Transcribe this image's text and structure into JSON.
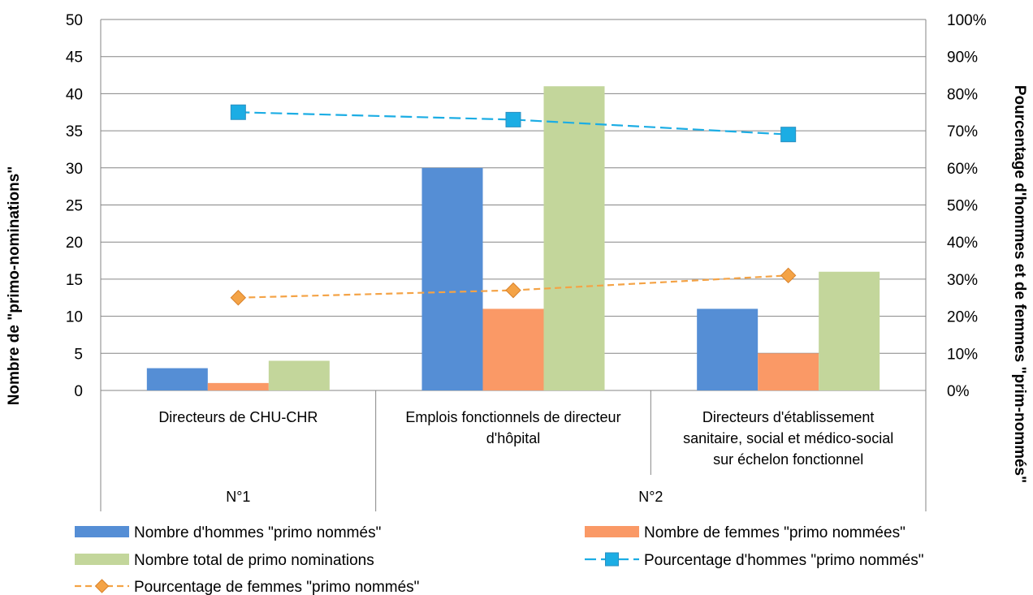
{
  "chart_data": {
    "type": "bar",
    "group_labels": [
      "N°1",
      "N°2"
    ],
    "categories": [
      "Directeurs de CHU-CHR",
      "Emplois fonctionnels de directeur d'hôpital",
      "Directeurs d'établissement sanitaire, social et médico-social sur échelon fonctionnel"
    ],
    "category_groups": [
      0,
      1,
      1
    ],
    "category_label_lines": [
      [
        "Directeurs de CHU-CHR"
      ],
      [
        "Emplois fonctionnels de directeur",
        "d'hôpital"
      ],
      [
        "Directeurs d'établissement",
        "sanitaire, social et médico-social",
        "sur échelon fonctionnel"
      ]
    ],
    "series": [
      {
        "name": "Nombre d'hommes \"primo nommés\"",
        "kind": "bar",
        "axis": "left",
        "color": "#558ed5",
        "values": [
          3,
          30,
          11
        ]
      },
      {
        "name": "Nombre de femmes \"primo nommées\"",
        "kind": "bar",
        "axis": "left",
        "color": "#fa9966",
        "values": [
          1,
          11,
          5
        ]
      },
      {
        "name": "Nombre total de primo nominations",
        "kind": "bar",
        "axis": "left",
        "color": "#c3d69b",
        "values": [
          4,
          41,
          16
        ]
      },
      {
        "name": "Pourcentage d'hommes \"primo nommés\"",
        "kind": "line",
        "axis": "right",
        "color": "#1cade4",
        "marker": "square",
        "values": [
          75,
          73,
          69
        ]
      },
      {
        "name": "Pourcentage de femmes \"primo nommés\"",
        "kind": "line",
        "axis": "right",
        "color": "#f4a346",
        "marker": "diamond",
        "values": [
          25,
          27,
          31
        ]
      }
    ],
    "ylabel": "Nombre de \"primo-nominations\"",
    "y2label": "Pourcentage d'hommes et de femmes \"prim-nommés\"",
    "ylim": [
      0,
      50
    ],
    "y2lim": [
      0,
      100
    ],
    "yticks": [
      "0",
      "5",
      "10",
      "15",
      "20",
      "25",
      "30",
      "35",
      "40",
      "45",
      "50"
    ],
    "y2ticks": [
      "0%",
      "10%",
      "20%",
      "30%",
      "40%",
      "50%",
      "60%",
      "70%",
      "80%",
      "90%",
      "100%"
    ],
    "grid": true,
    "legend_position": "bottom"
  }
}
